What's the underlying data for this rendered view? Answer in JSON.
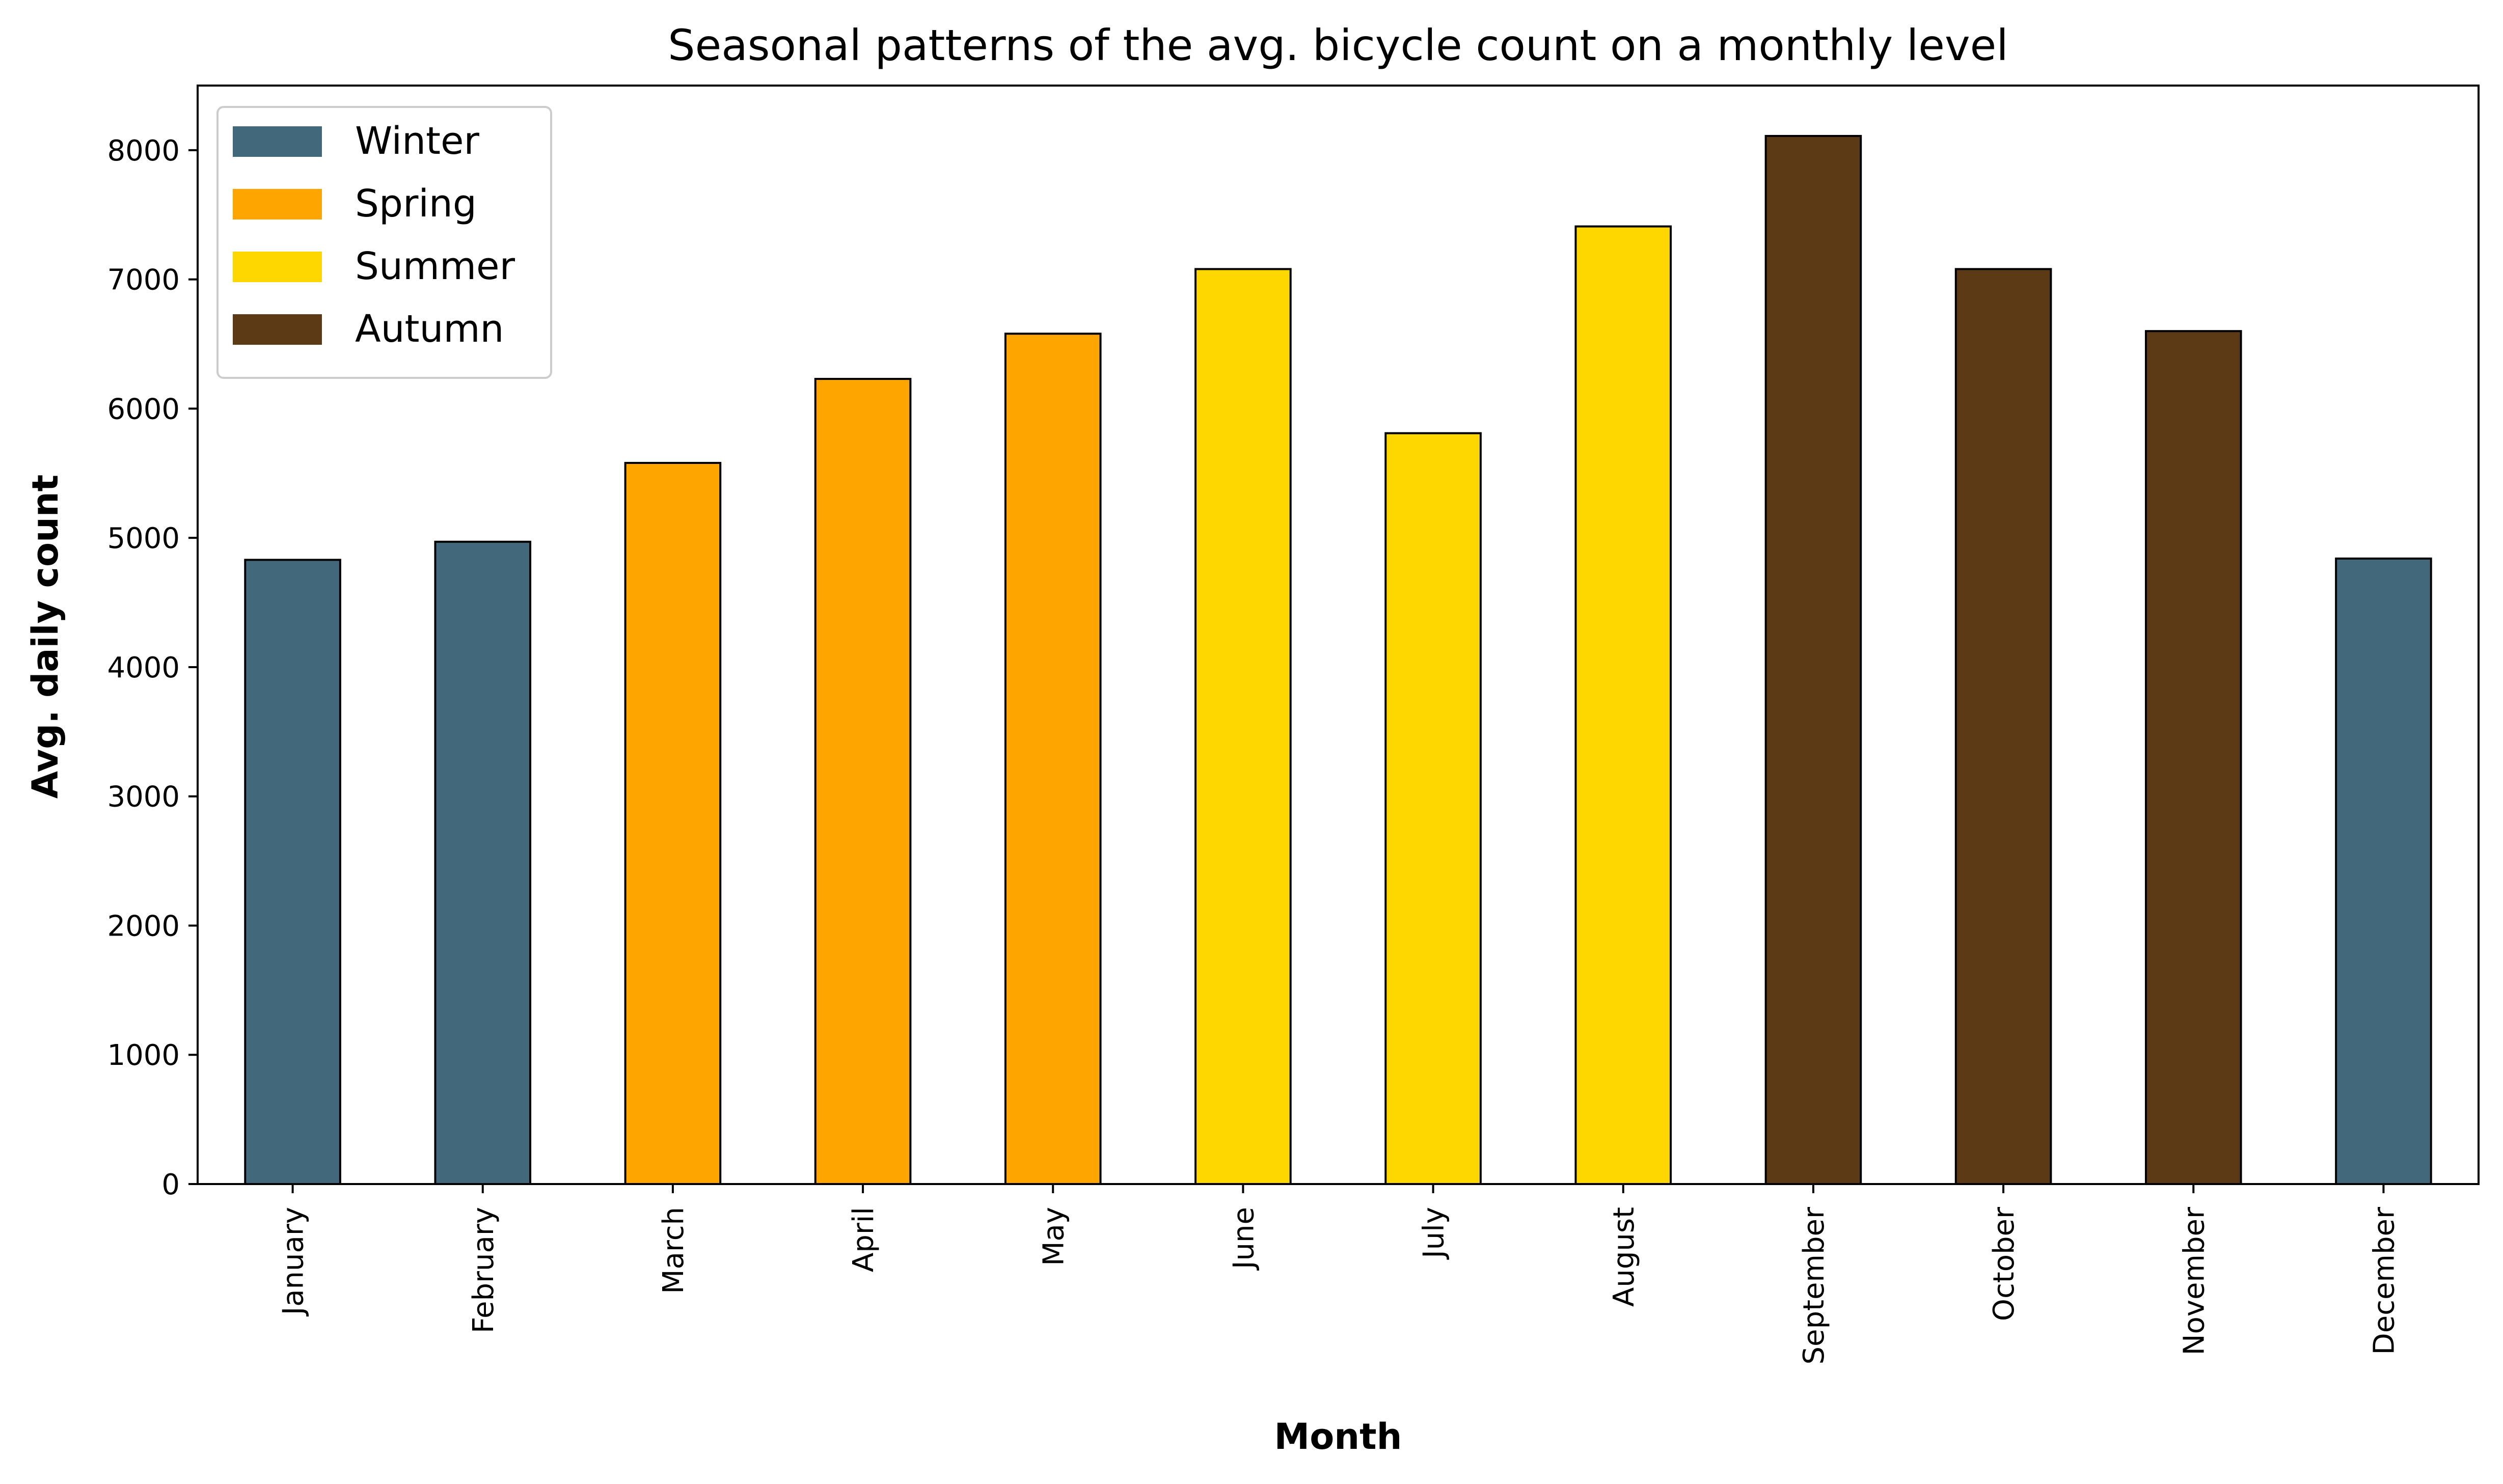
{
  "chart_data": {
    "type": "bar",
    "title": "Seasonal patterns of the avg. bicycle count on a monthly level",
    "xlabel": "Month",
    "ylabel": "Avg. daily count",
    "ylim": [
      0,
      8500
    ],
    "yticks": [
      0,
      1000,
      2000,
      3000,
      4000,
      5000,
      6000,
      7000,
      8000
    ],
    "categories": [
      "January",
      "February",
      "March",
      "April",
      "May",
      "June",
      "July",
      "August",
      "September",
      "October",
      "November",
      "December"
    ],
    "values": [
      4830,
      4970,
      5580,
      6230,
      6580,
      7080,
      5810,
      7410,
      8110,
      7080,
      6600,
      4840
    ],
    "season_of_month": [
      "Winter",
      "Winter",
      "Spring",
      "Spring",
      "Spring",
      "Summer",
      "Summer",
      "Summer",
      "Autumn",
      "Autumn",
      "Autumn",
      "Winter"
    ],
    "legend": {
      "placement": "top-left",
      "entries": [
        {
          "name": "Winter",
          "color": "#41687b"
        },
        {
          "name": "Spring",
          "color": "#ffa500"
        },
        {
          "name": "Summer",
          "color": "#ffd700"
        },
        {
          "name": "Autumn",
          "color": "#5c3a16"
        }
      ]
    },
    "grid": false,
    "bar_edge_color": "#000000"
  }
}
